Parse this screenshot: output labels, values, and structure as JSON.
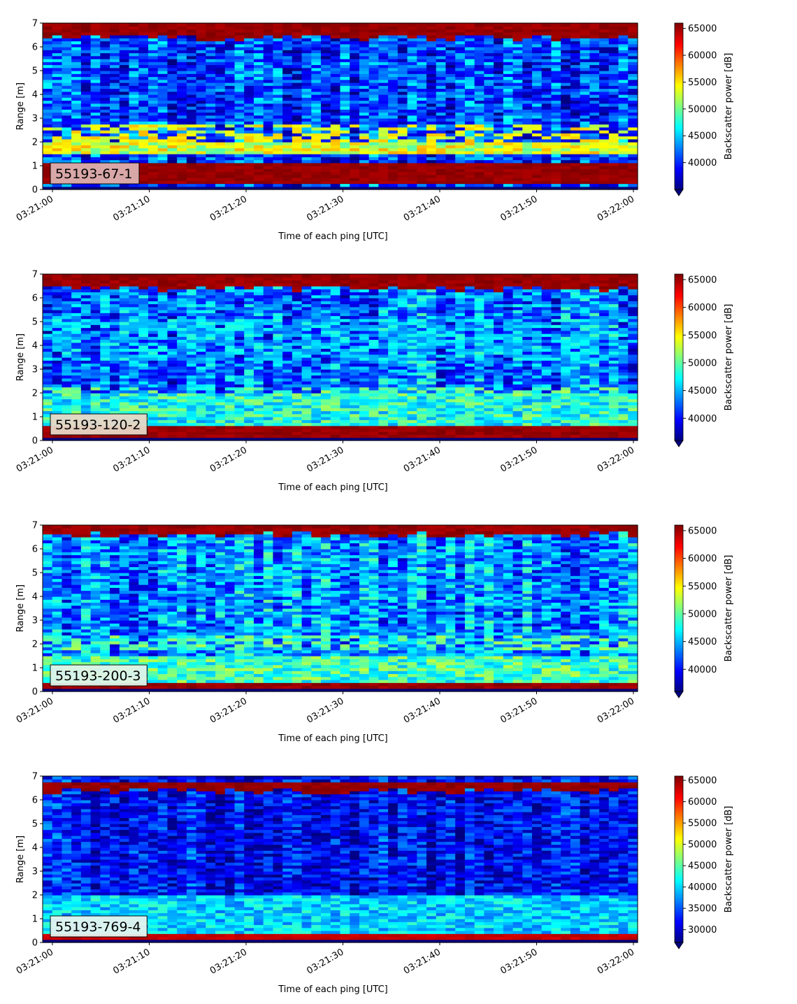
{
  "chart_data": [
    {
      "type": "heatmap",
      "annotation": "55193-67-1",
      "annotation_bg": "#dcb0b0",
      "xlabel": "Time of each ping [UTC]",
      "ylabel": "Range [m]",
      "x_ticks": [
        "03:21:00",
        "03:21:10",
        "03:21:20",
        "03:21:30",
        "03:21:40",
        "03:21:50",
        "03:22:00"
      ],
      "x_range": [
        "03:21:00",
        "03:22:00"
      ],
      "ylim": [
        0,
        7
      ],
      "y_ticks": [
        "0",
        "1",
        "2",
        "3",
        "4",
        "5",
        "6",
        "7"
      ],
      "colorbar": {
        "label": "Backscatter power [dB]",
        "min": 35000,
        "max": 66000,
        "ticks": [
          "40000",
          "45000",
          "50000",
          "55000",
          "60000",
          "65000"
        ],
        "tick_values": [
          40000,
          45000,
          50000,
          55000,
          60000,
          65000
        ],
        "colormap": "jet",
        "extend": "min"
      },
      "features": {
        "bottom_strong_band_m": [
          0.2,
          1.1
        ],
        "top_strong_band_m": [
          6.4,
          7.0
        ],
        "top_band_value": 66000,
        "bottom_band_value": 66000,
        "mid_band_m": [
          1.5,
          2.0
        ],
        "mid_band_value": 53000,
        "background_value": 41000,
        "layers": [
          {
            "y_start": 2.0,
            "y_end": 2.8,
            "value": 54000
          }
        ]
      }
    },
    {
      "type": "heatmap",
      "annotation": "55193-120-2",
      "annotation_bg": "#e8d8c8",
      "xlabel": "Time of each ping [UTC]",
      "ylabel": "Range [m]",
      "x_ticks": [
        "03:21:00",
        "03:21:10",
        "03:21:20",
        "03:21:30",
        "03:21:40",
        "03:21:50",
        "03:22:00"
      ],
      "x_range": [
        "03:21:00",
        "03:22:00"
      ],
      "ylim": [
        0,
        7
      ],
      "y_ticks": [
        "0",
        "1",
        "2",
        "3",
        "4",
        "5",
        "6",
        "7"
      ],
      "colorbar": {
        "label": "Backscatter power [dB]",
        "min": 36000,
        "max": 66000,
        "ticks": [
          "40000",
          "45000",
          "50000",
          "55000",
          "60000",
          "65000"
        ],
        "tick_values": [
          40000,
          45000,
          50000,
          55000,
          60000,
          65000
        ],
        "colormap": "jet",
        "extend": "min"
      },
      "features": {
        "bottom_strong_band_m": [
          0.15,
          0.6
        ],
        "top_strong_band_m": [
          6.4,
          7.0
        ],
        "top_band_value": 66000,
        "bottom_band_value": 66000,
        "mid_band_m": [
          0.6,
          2.0
        ],
        "mid_band_value": 48000,
        "background_value": 43000,
        "layers": [
          {
            "y_start": 1.9,
            "y_end": 2.3,
            "value": 50000
          },
          {
            "y_start": 3.4,
            "y_end": 5.1,
            "value": 46000
          }
        ]
      }
    },
    {
      "type": "heatmap",
      "annotation": "55193-200-3",
      "annotation_bg": "#e0f4e8",
      "xlabel": "Time of each ping [UTC]",
      "ylabel": "Range [m]",
      "x_ticks": [
        "03:21:00",
        "03:21:10",
        "03:21:20",
        "03:21:30",
        "03:21:40",
        "03:21:50",
        "03:22:00"
      ],
      "x_range": [
        "03:21:00",
        "03:22:00"
      ],
      "ylim": [
        0,
        7
      ],
      "y_ticks": [
        "0",
        "1",
        "2",
        "3",
        "4",
        "5",
        "6",
        "7"
      ],
      "colorbar": {
        "label": "Backscatter power [dB]",
        "min": 36000,
        "max": 66000,
        "ticks": [
          "40000",
          "45000",
          "50000",
          "55000",
          "60000",
          "65000"
        ],
        "tick_values": [
          40000,
          45000,
          50000,
          55000,
          60000,
          65000
        ],
        "colormap": "jet",
        "extend": "min"
      },
      "features": {
        "bottom_strong_band_m": [
          0.15,
          0.4
        ],
        "top_strong_band_m": [
          6.6,
          7.0
        ],
        "top_band_value": 66000,
        "bottom_band_value": 66000,
        "mid_band_m": [
          0.4,
          1.5
        ],
        "mid_band_value": 49000,
        "background_value": 44000,
        "layers": [
          {
            "y_start": 1.8,
            "y_end": 2.4,
            "value": 50000
          }
        ]
      }
    },
    {
      "type": "heatmap",
      "annotation": "55193-769-4",
      "annotation_bg": "#e4f4f0",
      "xlabel": "Time of each ping [UTC]",
      "ylabel": "Range [m]",
      "x_ticks": [
        "03:21:00",
        "03:21:10",
        "03:21:20",
        "03:21:30",
        "03:21:40",
        "03:21:50",
        "03:22:00"
      ],
      "x_range": [
        "03:21:00",
        "03:22:00"
      ],
      "ylim": [
        0,
        7
      ],
      "y_ticks": [
        "0",
        "1",
        "2",
        "3",
        "4",
        "5",
        "6",
        "7"
      ],
      "colorbar": {
        "label": "Backscatter power [dB]",
        "min": 27000,
        "max": 66000,
        "ticks": [
          "30000",
          "35000",
          "40000",
          "45000",
          "50000",
          "55000",
          "60000",
          "65000"
        ],
        "tick_values": [
          30000,
          35000,
          40000,
          45000,
          50000,
          55000,
          60000,
          65000
        ],
        "colormap": "jet",
        "extend": "min"
      },
      "features": {
        "bottom_strong_band_m": [
          0.15,
          0.35
        ],
        "top_strong_band_m": [
          6.4,
          6.7
        ],
        "top_band_value": 66000,
        "bottom_band_value": 64000,
        "mid_band_m": [
          0.35,
          2.0
        ],
        "mid_band_value": 40000,
        "background_value": 32000,
        "layers": []
      }
    }
  ]
}
